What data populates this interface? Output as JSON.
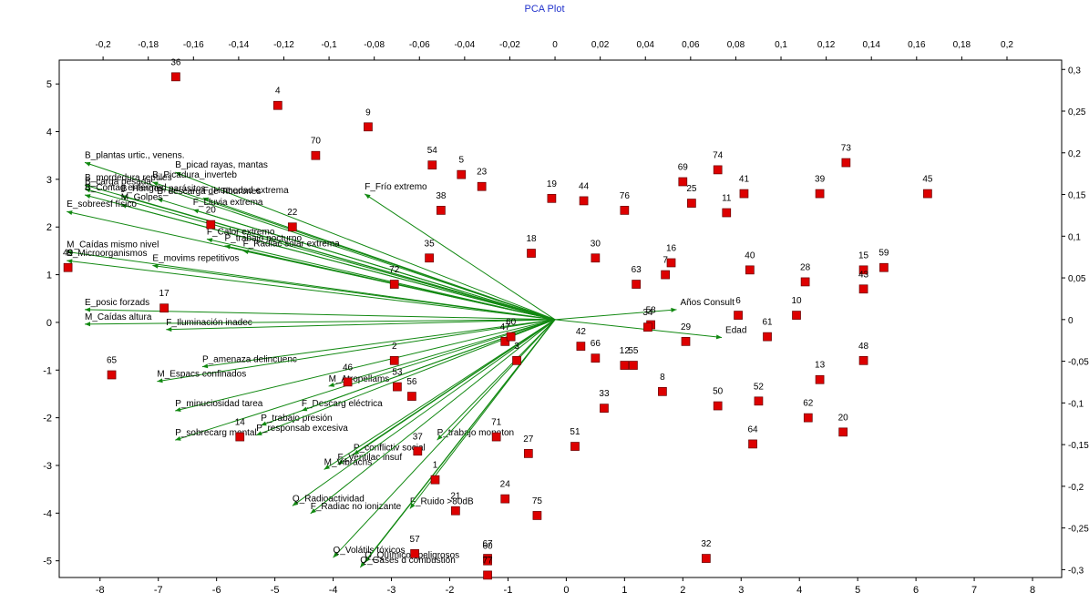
{
  "chart_data": {
    "type": "scatter",
    "title": "PCA Plot",
    "xlabel": "",
    "ylabel": "",
    "xlim": [
      -8.7,
      8.5
    ],
    "ylim": [
      -5.35,
      5.5
    ],
    "xticks": [
      -8,
      -7,
      -6,
      -5,
      -4,
      -3,
      -2,
      -1,
      0,
      1,
      2,
      3,
      4,
      5,
      6,
      7,
      8
    ],
    "yticks": [
      5,
      4,
      3,
      2,
      1,
      0,
      -1,
      -2,
      -3,
      -4,
      -5
    ],
    "x2lim": [
      -0.2194,
      0.2242
    ],
    "y2lim": [
      -0.3094,
      0.3112
    ],
    "x2ticks": [
      "-0,2",
      "-0,18",
      "-0,16",
      "-0,14",
      "-0,12",
      "-0,1",
      "-0,08",
      "-0,06",
      "-0,04",
      "-0,02",
      "0",
      "0,02",
      "0,04",
      "0,06",
      "0,08",
      "0,1",
      "0,12",
      "0,14",
      "0,16",
      "0,18",
      "0,2"
    ],
    "x2tick_values": [
      -0.2,
      -0.18,
      -0.16,
      -0.14,
      -0.12,
      -0.1,
      -0.08,
      -0.06,
      -0.04,
      -0.02,
      0,
      0.02,
      0.04,
      0.06,
      0.08,
      0.1,
      0.12,
      0.14,
      0.16,
      0.18,
      0.2
    ],
    "y2ticks": [
      "0,3",
      "0,25",
      "0,2",
      "0,15",
      "0,1",
      "0,05",
      "0",
      "-0,05",
      "-0,1",
      "-0,15",
      "-0,2",
      "-0,25",
      "-0,3"
    ],
    "y2tick_values": [
      0.3,
      0.25,
      0.2,
      0.15,
      0.1,
      0.05,
      0,
      -0.05,
      -0.1,
      -0.15,
      -0.2,
      -0.25,
      -0.3
    ],
    "points": [
      {
        "label": "36",
        "x": -6.7,
        "y": 5.15
      },
      {
        "label": "4",
        "x": -4.95,
        "y": 4.55
      },
      {
        "label": "9",
        "x": -3.4,
        "y": 4.1
      },
      {
        "label": "70",
        "x": -4.3,
        "y": 3.5
      },
      {
        "label": "54",
        "x": -2.3,
        "y": 3.3
      },
      {
        "label": "5",
        "x": -1.8,
        "y": 3.1
      },
      {
        "label": "23",
        "x": -1.45,
        "y": 2.85
      },
      {
        "label": "38",
        "x": -2.15,
        "y": 2.35
      },
      {
        "label": "19",
        "x": -0.25,
        "y": 2.6
      },
      {
        "label": "44",
        "x": 0.3,
        "y": 2.55
      },
      {
        "label": "76",
        "x": 1.0,
        "y": 2.35
      },
      {
        "label": "69",
        "x": 2.0,
        "y": 2.95
      },
      {
        "label": "74",
        "x": 2.6,
        "y": 3.2
      },
      {
        "label": "25",
        "x": 2.15,
        "y": 2.5
      },
      {
        "label": "41",
        "x": 3.05,
        "y": 2.7
      },
      {
        "label": "11",
        "x": 2.75,
        "y": 2.3
      },
      {
        "label": "73",
        "x": 4.8,
        "y": 3.35
      },
      {
        "label": "39",
        "x": 4.35,
        "y": 2.7
      },
      {
        "label": "45",
        "x": 6.2,
        "y": 2.7
      },
      {
        "label": "22",
        "x": -4.7,
        "y": 2.0
      },
      {
        "label": "20",
        "x": -6.1,
        "y": 2.05
      },
      {
        "label": "35",
        "x": -2.35,
        "y": 1.35
      },
      {
        "label": "18",
        "x": -0.6,
        "y": 1.45
      },
      {
        "label": "30",
        "x": 0.5,
        "y": 1.35
      },
      {
        "label": "16",
        "x": 1.8,
        "y": 1.25
      },
      {
        "label": "7",
        "x": 1.7,
        "y": 1.0
      },
      {
        "label": "63",
        "x": 1.2,
        "y": 0.8
      },
      {
        "label": "40",
        "x": 3.15,
        "y": 1.1
      },
      {
        "label": "28",
        "x": 4.1,
        "y": 0.85
      },
      {
        "label": "15",
        "x": 5.1,
        "y": 1.1
      },
      {
        "label": "43",
        "x": 5.1,
        "y": 0.7
      },
      {
        "label": "59",
        "x": 5.45,
        "y": 1.15
      },
      {
        "label": "49",
        "x": -8.55,
        "y": 1.15
      },
      {
        "label": "72",
        "x": -2.95,
        "y": 0.8
      },
      {
        "label": "17",
        "x": -6.9,
        "y": 0.3
      },
      {
        "label": "6",
        "x": 2.95,
        "y": 0.15
      },
      {
        "label": "10",
        "x": 3.95,
        "y": 0.15
      },
      {
        "label": "58",
        "x": 1.45,
        "y": -0.05
      },
      {
        "label": "34",
        "x": 1.4,
        "y": -0.1
      },
      {
        "label": "29",
        "x": 2.05,
        "y": -0.4
      },
      {
        "label": "61",
        "x": 3.45,
        "y": -0.3
      },
      {
        "label": "42",
        "x": 0.25,
        "y": -0.5
      },
      {
        "label": "66",
        "x": 0.5,
        "y": -0.75
      },
      {
        "label": "12",
        "x": 1.0,
        "y": -0.9
      },
      {
        "label": "55",
        "x": 1.15,
        "y": -0.9
      },
      {
        "label": "47",
        "x": -1.05,
        "y": -0.4
      },
      {
        "label": "8",
        "x": 1.65,
        "y": -1.45
      },
      {
        "label": "13",
        "x": 4.35,
        "y": -1.2
      },
      {
        "label": "48",
        "x": 5.1,
        "y": -0.8
      },
      {
        "label": "65",
        "x": -7.8,
        "y": -1.1
      },
      {
        "label": "2",
        "x": -2.95,
        "y": -0.8
      },
      {
        "label": "46",
        "x": -3.75,
        "y": -1.25
      },
      {
        "label": "53",
        "x": -2.9,
        "y": -1.35
      },
      {
        "label": "56",
        "x": -2.65,
        "y": -1.55
      },
      {
        "label": "60b",
        "x": -0.95,
        "y": -0.3
      },
      {
        "label": "3b",
        "x": -0.85,
        "y": -0.8
      },
      {
        "label": "50",
        "x": 2.6,
        "y": -1.75
      },
      {
        "label": "52",
        "x": 3.3,
        "y": -1.65
      },
      {
        "label": "62",
        "x": 4.15,
        "y": -2.0
      },
      {
        "label": "20b",
        "x": 4.75,
        "y": -2.3
      },
      {
        "label": "33",
        "x": 0.65,
        "y": -1.8
      },
      {
        "label": "64",
        "x": 3.2,
        "y": -2.55
      },
      {
        "label": "71",
        "x": -1.2,
        "y": -2.4
      },
      {
        "label": "27",
        "x": -0.65,
        "y": -2.75
      },
      {
        "label": "51",
        "x": 0.15,
        "y": -2.6
      },
      {
        "label": "37",
        "x": -2.55,
        "y": -2.7
      },
      {
        "label": "1",
        "x": -2.25,
        "y": -3.3
      },
      {
        "label": "24",
        "x": -1.05,
        "y": -3.7
      },
      {
        "label": "21",
        "x": -1.9,
        "y": -3.95
      },
      {
        "label": "75",
        "x": -0.5,
        "y": -4.05
      },
      {
        "label": "57",
        "x": -2.6,
        "y": -4.85
      },
      {
        "label": "67",
        "x": -1.35,
        "y": -4.95
      },
      {
        "label": "60",
        "x": -1.35,
        "y": -5.0
      },
      {
        "label": "77",
        "x": -1.35,
        "y": -5.3
      },
      {
        "label": "32",
        "x": 2.4,
        "y": -4.95
      },
      {
        "label": "14",
        "x": -5.6,
        "y": -2.4
      }
    ],
    "vectors": [
      {
        "label": "B_plantas urtic., venens.",
        "x": -0.2081,
        "y": 0.1884
      },
      {
        "label": "B_picad rayas, mantas",
        "x": -0.1681,
        "y": 0.1767
      },
      {
        "label": "B_Picadura_inverteb",
        "x": -0.1782,
        "y": 0.1649
      },
      {
        "label": "B_mordedura reptiles",
        "x": -0.2081,
        "y": 0.1614
      },
      {
        "label": "B_carga pesada",
        "x": -0.2081,
        "y": 0.1567
      },
      {
        "label": "B_Contag enfermed",
        "x": -0.2081,
        "y": 0.1495
      },
      {
        "label": "B_Hongos, parásitos",
        "x": -0.1921,
        "y": 0.1484
      },
      {
        "label": "B_descarga de Tiburones",
        "x": -0.1761,
        "y": 0.1449
      },
      {
        "label": "F_Humedad extrema",
        "x": -0.1558,
        "y": 0.146
      },
      {
        "label": "M_Golpes",
        "x": -0.1921,
        "y": 0.1378
      },
      {
        "label": "F_Lluvia extrema",
        "x": -0.1602,
        "y": 0.1319
      },
      {
        "label": "E_sobreesf físico",
        "x": -0.2161,
        "y": 0.1296
      },
      {
        "label": "F_Frío extremo",
        "x": -0.0842,
        "y": 0.1507
      },
      {
        "label": "F_Calor extremo",
        "x": -0.1541,
        "y": 0.0966
      },
      {
        "label": "P_trabajo nocturno",
        "x": -0.1462,
        "y": 0.0886
      },
      {
        "label": "F_Radiac solar extrema",
        "x": -0.1381,
        "y": 0.0825
      },
      {
        "label": "M_Caídas mismo nivel",
        "x": -0.2161,
        "y": 0.0813
      },
      {
        "label": "E_Microorganismos",
        "x": -0.2161,
        "y": 0.0707
      },
      {
        "label": "E_movims repetitivos",
        "x": -0.1781,
        "y": 0.0648
      },
      {
        "label": "E_posic forzads",
        "x": -0.2081,
        "y": 0.012
      },
      {
        "label": "M_Caídas altura",
        "x": -0.2081,
        "y": -0.0055
      },
      {
        "label": "F_Iluminación inadec",
        "x": -0.1721,
        "y": -0.012
      },
      {
        "label": "P_amenaza delincuenc",
        "x": -0.1561,
        "y": -0.0566
      },
      {
        "label": "M_Espacs confinados",
        "x": -0.1761,
        "y": -0.0742
      },
      {
        "label": "M_Atropellams",
        "x": -0.1002,
        "y": -0.08
      },
      {
        "label": "F_Descarg eléctrica",
        "x": -0.1122,
        "y": -0.1094
      },
      {
        "label": "P_minuciosidad tarea",
        "x": -0.1681,
        "y": -0.1094
      },
      {
        "label": "P_trabajo presión",
        "x": -0.1302,
        "y": -0.1269
      },
      {
        "label": "P_responsab excesiva",
        "x": -0.1322,
        "y": -0.1387
      },
      {
        "label": "P_sobrecarg mental",
        "x": -0.1681,
        "y": -0.1446
      },
      {
        "label": "P_trabajo monoton",
        "x": -0.0522,
        "y": -0.1446
      },
      {
        "label": "P_conflictiv social",
        "x": -0.0892,
        "y": -0.1622
      },
      {
        "label": "F_Ventilac insuf",
        "x": -0.0962,
        "y": -0.174
      },
      {
        "label": "M_Vibracns",
        "x": -0.1022,
        "y": -0.1799
      },
      {
        "label": "F_Ruido >80dB",
        "x": -0.0642,
        "y": -0.2269
      },
      {
        "label": "Q_Radioactividad",
        "x": -0.1162,
        "y": -0.2234
      },
      {
        "label": "F_Radiac no ionizante",
        "x": -0.1082,
        "y": -0.2327
      },
      {
        "label": "Q_Volátils tóxicos",
        "x": -0.0982,
        "y": -0.2856
      },
      {
        "label": "Q_Químicos peligrosos",
        "x": -0.0842,
        "y": -0.2915
      },
      {
        "label": "Q_Gases d combustión",
        "x": -0.0862,
        "y": -0.2974
      },
      {
        "label": "Años Consult",
        "x": 0.0538,
        "y": 0.0119
      },
      {
        "label": "Edad",
        "x": 0.0738,
        "y": -0.0215
      }
    ]
  }
}
